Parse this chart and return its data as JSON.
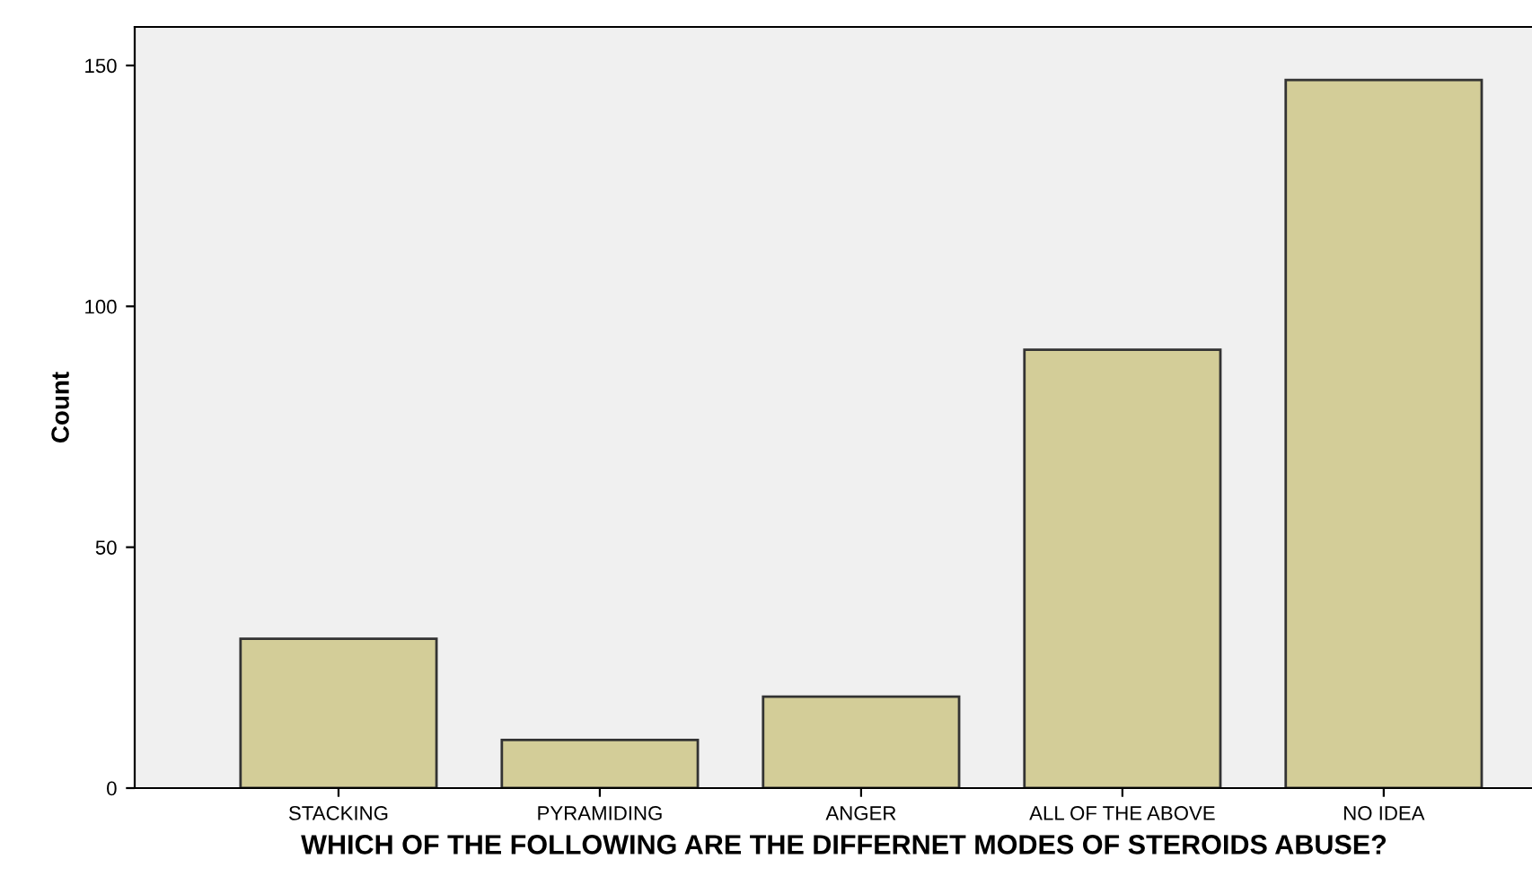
{
  "chart_data": {
    "type": "bar",
    "xlabel": "WHICH OF THE FOLLOWING ARE THE DIFFERNET MODES OF STEROIDS ABUSE?",
    "ylabel": "Count",
    "categories": [
      "STACKING",
      "PYRAMIDING",
      "ANGER",
      "ALL OF THE ABOVE",
      "NO IDEA"
    ],
    "values": [
      31,
      10,
      19,
      91,
      147
    ],
    "color": "#d3cd98",
    "ylim": [
      0,
      158
    ],
    "yticks": [
      0,
      50,
      100,
      150
    ],
    "grid": false
  }
}
